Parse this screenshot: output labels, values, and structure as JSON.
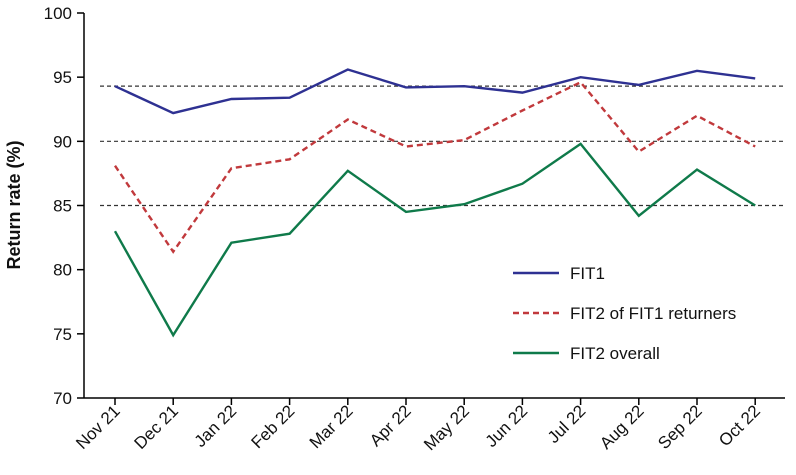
{
  "chart_data": {
    "type": "line",
    "title": "",
    "xlabel": "",
    "ylabel": "Return rate (%)",
    "ylim": [
      70,
      100
    ],
    "yticks": [
      70,
      75,
      80,
      85,
      90,
      95,
      100
    ],
    "categories": [
      "Nov 21",
      "Dec 21",
      "Jan 22",
      "Feb 22",
      "Mar 22",
      "Apr 22",
      "May 22",
      "Jun 22",
      "Jul 22",
      "Aug 22",
      "Sep 22",
      "Oct 22"
    ],
    "reference_lines": [
      94.3,
      90,
      85
    ],
    "legend_position": "lower-right",
    "series": [
      {
        "name": "FIT1",
        "color": "#2e3192",
        "dash": "solid",
        "values": [
          94.3,
          92.2,
          93.3,
          93.4,
          95.6,
          94.2,
          94.3,
          93.8,
          95.0,
          94.4,
          95.5,
          94.9
        ]
      },
      {
        "name": "FIT2 of FIT1 returners",
        "color": "#c1393c",
        "dash": "dashed",
        "values": [
          88.1,
          81.4,
          87.9,
          88.6,
          91.7,
          89.6,
          90.1,
          92.4,
          94.6,
          89.2,
          92.0,
          89.6
        ]
      },
      {
        "name": "FIT2 overall",
        "color": "#0f7a4a",
        "dash": "solid",
        "values": [
          83.0,
          74.9,
          82.1,
          82.8,
          87.7,
          84.5,
          85.1,
          86.7,
          89.8,
          84.2,
          87.8,
          85.0
        ]
      }
    ]
  }
}
